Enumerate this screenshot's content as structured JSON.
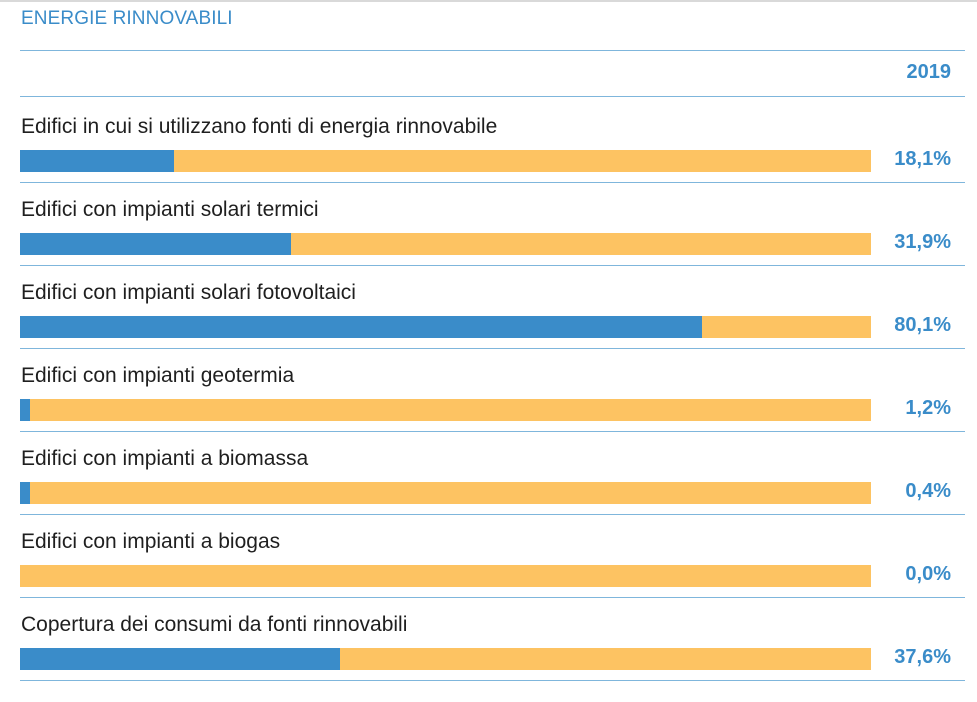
{
  "header": {
    "title": "ENERGIE RINNOVABILI",
    "year": "2019"
  },
  "colors": {
    "accent": "#3a8cc9",
    "bar_background": "#fdc362",
    "text": "#1f1f1f",
    "rule": "#7fb6dc"
  },
  "chart_data": {
    "type": "bar",
    "title": "ENERGIE RINNOVABILI",
    "orientation": "horizontal",
    "stacked_to_100": true,
    "column_header": "2019",
    "xlim": [
      0,
      100
    ],
    "unit": "%",
    "categories": [
      "Edifici in cui si utilizzano fonti di energia rinnovabile",
      "Edifici con impianti solari termici",
      "Edifici con impianti solari fotovoltaici",
      "Edifici con impianti geotermia",
      "Edifici con impianti a biomassa",
      "Edifici con impianti a biogas",
      "Copertura dei consumi da fonti rinnovabili"
    ],
    "values": [
      18.1,
      31.9,
      80.1,
      1.2,
      0.4,
      0.0,
      37.6
    ],
    "value_labels": [
      "18,1%",
      "31,9%",
      "80,1%",
      "1,2%",
      "0,4%",
      "0,0%",
      "37,6%"
    ]
  }
}
